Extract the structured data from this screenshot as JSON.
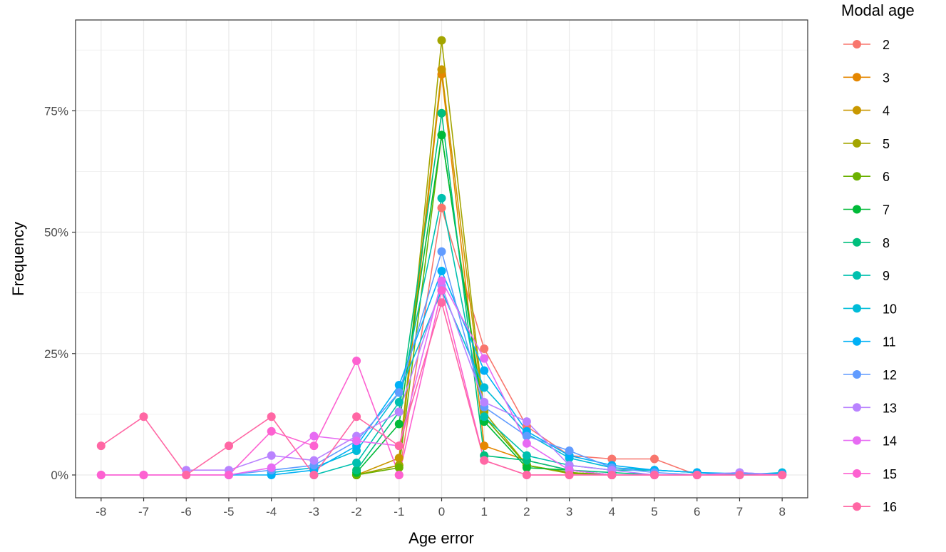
{
  "chart_data": {
    "type": "line",
    "xlabel": "Age error",
    "ylabel": "Frequency",
    "legend_title": "Modal age",
    "legend_position": "right",
    "grid": true,
    "xlim": [
      -8.6,
      8.6
    ],
    "ylim": [
      -0.047,
      0.937
    ],
    "x_ticks": [
      -8,
      -7,
      -6,
      -5,
      -4,
      -3,
      -2,
      -1,
      0,
      1,
      2,
      3,
      4,
      5,
      6,
      7,
      8
    ],
    "x_tick_labels": [
      "-8",
      "-7",
      "-6",
      "-5",
      "-4",
      "-3",
      "-2",
      "-1",
      "0",
      "1",
      "2",
      "3",
      "4",
      "5",
      "6",
      "7",
      "8"
    ],
    "y_ticks": [
      0,
      0.25,
      0.5,
      0.75
    ],
    "y_tick_labels": [
      "0%",
      "25%",
      "50%",
      "75%"
    ],
    "series": [
      {
        "name": "2",
        "color": "#F8766D",
        "points": [
          [
            -1,
            0.0
          ],
          [
            0,
            0.55
          ],
          [
            1,
            0.26
          ],
          [
            2,
            0.1
          ],
          [
            3,
            0.04
          ],
          [
            4,
            0.033
          ],
          [
            5,
            0.033
          ],
          [
            6,
            0.0
          ]
        ]
      },
      {
        "name": "3",
        "color": "#E58700",
        "points": [
          [
            -2,
            0.0
          ],
          [
            -1,
            0.02
          ],
          [
            0,
            0.825
          ],
          [
            1,
            0.06
          ],
          [
            2,
            0.03
          ],
          [
            3,
            0.01
          ],
          [
            4,
            0.0
          ]
        ]
      },
      {
        "name": "4",
        "color": "#C99800",
        "points": [
          [
            -2,
            0.0
          ],
          [
            -1,
            0.035
          ],
          [
            0,
            0.835
          ],
          [
            1,
            0.12
          ],
          [
            2,
            0.02
          ],
          [
            3,
            0.005
          ],
          [
            4,
            0.0
          ]
        ]
      },
      {
        "name": "5",
        "color": "#A3A500",
        "points": [
          [
            -2,
            0.0
          ],
          [
            -1,
            0.02
          ],
          [
            0,
            0.895
          ],
          [
            1,
            0.13
          ],
          [
            2,
            0.02
          ],
          [
            3,
            0.003
          ],
          [
            4,
            0.0
          ]
        ]
      },
      {
        "name": "6",
        "color": "#6BB100",
        "points": [
          [
            -2,
            0.0
          ],
          [
            -1,
            0.015
          ],
          [
            0,
            0.7
          ],
          [
            1,
            0.12
          ],
          [
            2,
            0.02
          ],
          [
            3,
            0.005
          ],
          [
            4,
            0.0
          ]
        ]
      },
      {
        "name": "7",
        "color": "#00BA38",
        "points": [
          [
            -2,
            0.005
          ],
          [
            -1,
            0.105
          ],
          [
            0,
            0.7
          ],
          [
            1,
            0.11
          ],
          [
            2,
            0.015
          ],
          [
            3,
            0.01
          ],
          [
            4,
            0.0
          ]
        ]
      },
      {
        "name": "8",
        "color": "#00BF7D",
        "points": [
          [
            -2,
            0.01
          ],
          [
            -1,
            0.13
          ],
          [
            0,
            0.745
          ],
          [
            1,
            0.04
          ],
          [
            2,
            0.03
          ],
          [
            3,
            0.01
          ],
          [
            4,
            0.005
          ],
          [
            5,
            0.0
          ]
        ]
      },
      {
        "name": "9",
        "color": "#00C0AF",
        "points": [
          [
            -3,
            0.0
          ],
          [
            -2,
            0.025
          ],
          [
            -1,
            0.15
          ],
          [
            0,
            0.57
          ],
          [
            1,
            0.12
          ],
          [
            2,
            0.04
          ],
          [
            3,
            0.02
          ],
          [
            4,
            0.01
          ],
          [
            5,
            0.01
          ],
          [
            6,
            0.005
          ],
          [
            7,
            0.0
          ]
        ]
      },
      {
        "name": "10",
        "color": "#00BCD8",
        "points": [
          [
            -4,
            0.005
          ],
          [
            -3,
            0.015
          ],
          [
            -2,
            0.05
          ],
          [
            -1,
            0.17
          ],
          [
            0,
            0.38
          ],
          [
            1,
            0.18
          ],
          [
            2,
            0.085
          ],
          [
            3,
            0.035
          ],
          [
            4,
            0.015
          ],
          [
            5,
            0.01
          ],
          [
            6,
            0.005
          ],
          [
            7,
            0.0
          ],
          [
            8,
            0.005
          ]
        ]
      },
      {
        "name": "11",
        "color": "#00B0F6",
        "points": [
          [
            -5,
            0.0
          ],
          [
            -4,
            0.0
          ],
          [
            -3,
            0.01
          ],
          [
            -2,
            0.06
          ],
          [
            -1,
            0.185
          ],
          [
            0,
            0.42
          ],
          [
            1,
            0.215
          ],
          [
            2,
            0.09
          ],
          [
            3,
            0.04
          ],
          [
            4,
            0.02
          ],
          [
            5,
            0.01
          ],
          [
            6,
            0.005
          ],
          [
            7,
            0.003
          ],
          [
            8,
            0.003
          ]
        ]
      },
      {
        "name": "12",
        "color": "#619CFF",
        "points": [
          [
            -5,
            0.0
          ],
          [
            -4,
            0.01
          ],
          [
            -3,
            0.02
          ],
          [
            -2,
            0.07
          ],
          [
            -1,
            0.17
          ],
          [
            0,
            0.46
          ],
          [
            1,
            0.14
          ],
          [
            2,
            0.08
          ],
          [
            3,
            0.05
          ],
          [
            4,
            0.015
          ],
          [
            5,
            0.005
          ],
          [
            6,
            0.0
          ],
          [
            7,
            0.005
          ],
          [
            8,
            0.0
          ]
        ]
      },
      {
        "name": "13",
        "color": "#B983FF",
        "points": [
          [
            -6,
            0.01
          ],
          [
            -5,
            0.01
          ],
          [
            -4,
            0.04
          ],
          [
            -3,
            0.03
          ],
          [
            -2,
            0.08
          ],
          [
            -1,
            0.13
          ],
          [
            0,
            0.39
          ],
          [
            1,
            0.15
          ],
          [
            2,
            0.11
          ],
          [
            3,
            0.02
          ],
          [
            4,
            0.01
          ],
          [
            5,
            0.0
          ],
          [
            6,
            0.0
          ],
          [
            7,
            0.005
          ],
          [
            8,
            0.0
          ]
        ]
      },
      {
        "name": "14",
        "color": "#E76BF3",
        "points": [
          [
            -8,
            0.0
          ],
          [
            -7,
            0.0
          ],
          [
            -6,
            0.0
          ],
          [
            -5,
            0.0
          ],
          [
            -4,
            0.015
          ],
          [
            -3,
            0.08
          ],
          [
            -2,
            0.07
          ],
          [
            -1,
            0.06
          ],
          [
            0,
            0.4
          ],
          [
            1,
            0.24
          ],
          [
            2,
            0.065
          ],
          [
            3,
            0.01
          ],
          [
            4,
            0.0
          ],
          [
            5,
            0.0
          ],
          [
            6,
            0.0
          ],
          [
            7,
            0.0
          ],
          [
            8,
            0.0
          ]
        ]
      },
      {
        "name": "15",
        "color": "#FD61D1",
        "points": [
          [
            -8,
            0.0
          ],
          [
            -7,
            0.0
          ],
          [
            -6,
            0.0
          ],
          [
            -5,
            0.0
          ],
          [
            -4,
            0.09
          ],
          [
            -3,
            0.06
          ],
          [
            -2,
            0.235
          ],
          [
            -1,
            0.0
          ],
          [
            0,
            0.38
          ],
          [
            1,
            0.03
          ],
          [
            2,
            0.0
          ],
          [
            3,
            0.0
          ],
          [
            4,
            0.0
          ],
          [
            5,
            0.0
          ],
          [
            6,
            0.0
          ],
          [
            7,
            0.0
          ],
          [
            8,
            0.0
          ]
        ]
      },
      {
        "name": "16",
        "color": "#FF67A4",
        "points": [
          [
            -8,
            0.06
          ],
          [
            -7,
            0.12
          ],
          [
            -6,
            0.0
          ],
          [
            -5,
            0.06
          ],
          [
            -4,
            0.12
          ],
          [
            -3,
            0.0
          ],
          [
            -2,
            0.12
          ],
          [
            -1,
            0.06
          ],
          [
            0,
            0.355
          ],
          [
            1,
            0.03
          ],
          [
            2,
            0.0
          ],
          [
            3,
            0.0
          ],
          [
            4,
            0.0
          ],
          [
            5,
            0.0
          ],
          [
            6,
            0.0
          ],
          [
            7,
            0.0
          ],
          [
            8,
            0.0
          ]
        ]
      }
    ]
  }
}
